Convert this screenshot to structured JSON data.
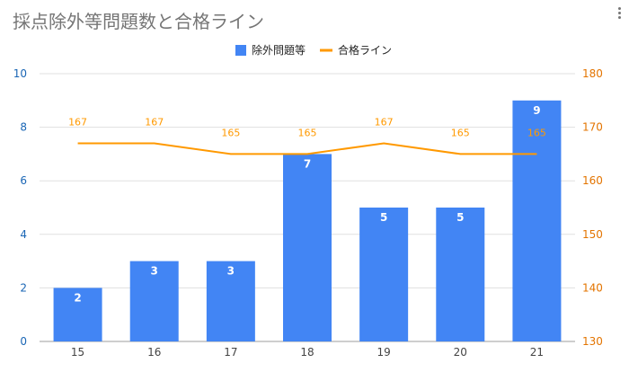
{
  "colors": {
    "bar": "#4285f4",
    "line": "#ff9900",
    "axis_left": "#1a66b5",
    "axis_right": "#e37400",
    "grid": "#e0e0e0",
    "title": "#757575"
  },
  "chart_data": {
    "type": "bar",
    "title": "採点除外等問題数と合格ライン",
    "categories": [
      "15",
      "16",
      "17",
      "18",
      "19",
      "20",
      "21"
    ],
    "series": [
      {
        "name": "除外問題等",
        "type": "bar",
        "axis": "left",
        "values": [
          2,
          3,
          3,
          7,
          5,
          5,
          9
        ]
      },
      {
        "name": "合格ライン",
        "type": "line",
        "axis": "right",
        "values": [
          167,
          167,
          165,
          165,
          167,
          165,
          165
        ]
      }
    ],
    "y_left": {
      "range": [
        0,
        10
      ],
      "ticks": [
        "0",
        "2",
        "4",
        "6",
        "8",
        "10"
      ]
    },
    "y_right": {
      "range": [
        130,
        180
      ],
      "ticks": [
        "130",
        "140",
        "150",
        "160",
        "170",
        "180"
      ]
    },
    "grid": true,
    "legend": "top-center"
  }
}
